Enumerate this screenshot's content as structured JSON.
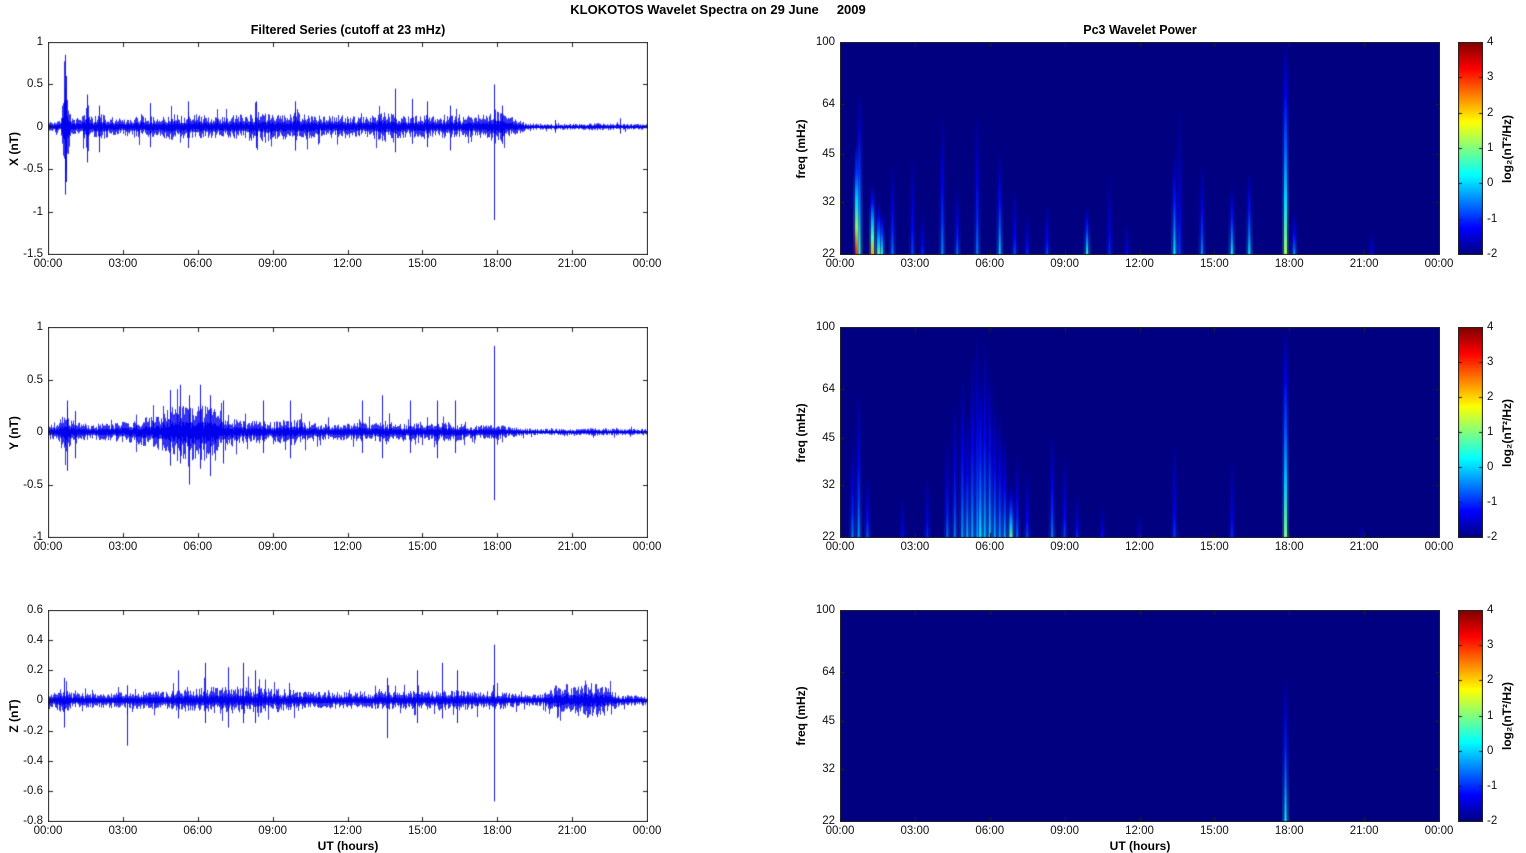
{
  "figure_title": "KLOKOTOS Wavelet Spectra on 29 June     2009",
  "x_axis": {
    "label": "UT (hours)",
    "tick_labels": [
      "00:00",
      "03:00",
      "06:00",
      "09:00",
      "12:00",
      "15:00",
      "18:00",
      "21:00",
      "00:00"
    ],
    "range_hours": [
      0,
      24
    ]
  },
  "colorbar": {
    "label": "log₂(nT²/Hz)",
    "ticks": [
      4,
      3,
      2,
      1,
      0,
      -1,
      -2
    ],
    "range": [
      -2,
      4
    ]
  },
  "colors": {
    "series_line": "#0000EE",
    "spectrogram_background": "#000090",
    "axis": "#222222",
    "text": "#000000"
  },
  "chart_data": [
    {
      "id": "ts-x",
      "type": "line",
      "title": "Filtered Series (cutoff at 23 mHz)",
      "ylabel": "X (nT)",
      "ylim": [
        -1.5,
        1
      ],
      "yticks": [
        1,
        0.5,
        0,
        -0.5,
        -1,
        -1.5
      ],
      "xlim": [
        0,
        24
      ],
      "seed": 11,
      "envelope": [
        [
          0,
          0.06
        ],
        [
          0.5,
          0.08
        ],
        [
          0.6,
          0.45
        ],
        [
          0.67,
          0.85
        ],
        [
          0.75,
          0.45
        ],
        [
          0.9,
          0.12
        ],
        [
          1.3,
          0.1
        ],
        [
          1.55,
          0.3
        ],
        [
          1.7,
          0.12
        ],
        [
          2,
          0.16
        ],
        [
          2.5,
          0.12
        ],
        [
          3,
          0.1
        ],
        [
          3.5,
          0.14
        ],
        [
          4,
          0.12
        ],
        [
          4.5,
          0.14
        ],
        [
          5,
          0.16
        ],
        [
          5.5,
          0.14
        ],
        [
          6,
          0.17
        ],
        [
          6.5,
          0.14
        ],
        [
          7,
          0.12
        ],
        [
          7.5,
          0.14
        ],
        [
          8,
          0.16
        ],
        [
          8.5,
          0.18
        ],
        [
          9,
          0.14
        ],
        [
          9.5,
          0.16
        ],
        [
          10,
          0.18
        ],
        [
          10.5,
          0.14
        ],
        [
          11,
          0.12
        ],
        [
          11.5,
          0.14
        ],
        [
          12,
          0.14
        ],
        [
          12.5,
          0.12
        ],
        [
          13,
          0.14
        ],
        [
          13.5,
          0.18
        ],
        [
          14,
          0.14
        ],
        [
          14.5,
          0.12
        ],
        [
          15,
          0.16
        ],
        [
          15.5,
          0.12
        ],
        [
          16,
          0.14
        ],
        [
          16.5,
          0.12
        ],
        [
          17,
          0.14
        ],
        [
          17.5,
          0.16
        ],
        [
          17.9,
          0.22
        ],
        [
          18.3,
          0.14
        ],
        [
          18.8,
          0.09
        ],
        [
          19.2,
          0.04
        ],
        [
          20,
          0.035
        ],
        [
          21,
          0.035
        ],
        [
          22,
          0.045
        ],
        [
          23,
          0.035
        ],
        [
          24,
          0.035
        ]
      ],
      "spikes": [
        [
          0.67,
          0.85,
          -0.8
        ],
        [
          0.72,
          0.6,
          -0.65
        ],
        [
          1.55,
          0.38,
          -0.42
        ],
        [
          2.05,
          0.25,
          -0.3
        ],
        [
          4.1,
          0.28,
          -0.24
        ],
        [
          5.6,
          0.3,
          -0.25
        ],
        [
          8.35,
          0.3,
          -0.25
        ],
        [
          9.9,
          0.3,
          -0.28
        ],
        [
          13.9,
          0.45,
          -0.3
        ],
        [
          14.6,
          0.33,
          -0.2
        ],
        [
          15.2,
          0.3,
          -0.24
        ],
        [
          16.1,
          0.25,
          -0.28
        ],
        [
          17.85,
          0.5,
          -1.1
        ],
        [
          18.2,
          0.25,
          -0.2
        ],
        [
          20.3,
          0.08,
          -0.07
        ],
        [
          22.9,
          0.1,
          -0.08
        ]
      ]
    },
    {
      "id": "ts-y",
      "type": "line",
      "ylabel": "Y (nT)",
      "ylim": [
        -1,
        1
      ],
      "yticks": [
        1,
        0.5,
        0,
        -0.5,
        -1
      ],
      "xlim": [
        0,
        24
      ],
      "seed": 22,
      "envelope": [
        [
          0,
          0.06
        ],
        [
          0.4,
          0.14
        ],
        [
          0.6,
          0.2
        ],
        [
          0.75,
          0.22
        ],
        [
          0.9,
          0.12
        ],
        [
          1.2,
          0.09
        ],
        [
          2,
          0.08
        ],
        [
          3,
          0.1
        ],
        [
          3.6,
          0.12
        ],
        [
          4.2,
          0.16
        ],
        [
          4.8,
          0.22
        ],
        [
          5.2,
          0.26
        ],
        [
          5.6,
          0.3
        ],
        [
          6,
          0.27
        ],
        [
          6.4,
          0.28
        ],
        [
          6.8,
          0.22
        ],
        [
          7.2,
          0.16
        ],
        [
          7.6,
          0.12
        ],
        [
          8,
          0.1
        ],
        [
          8.5,
          0.12
        ],
        [
          9,
          0.1
        ],
        [
          9.5,
          0.12
        ],
        [
          10,
          0.13
        ],
        [
          10.5,
          0.1
        ],
        [
          11,
          0.08
        ],
        [
          12,
          0.08
        ],
        [
          12.5,
          0.1
        ],
        [
          13,
          0.08
        ],
        [
          13.5,
          0.11
        ],
        [
          14,
          0.08
        ],
        [
          14.5,
          0.09
        ],
        [
          15,
          0.08
        ],
        [
          15.5,
          0.09
        ],
        [
          16,
          0.09
        ],
        [
          16.5,
          0.08
        ],
        [
          17,
          0.06
        ],
        [
          17.5,
          0.07
        ],
        [
          18,
          0.07
        ],
        [
          18.6,
          0.05
        ],
        [
          19,
          0.035
        ],
        [
          20,
          0.03
        ],
        [
          21,
          0.03
        ],
        [
          22,
          0.04
        ],
        [
          23,
          0.03
        ],
        [
          24,
          0.03
        ]
      ],
      "spikes": [
        [
          0.75,
          0.3,
          -0.37
        ],
        [
          1.1,
          0.2,
          -0.25
        ],
        [
          4.9,
          0.4,
          -0.32
        ],
        [
          5.3,
          0.45,
          -0.3
        ],
        [
          5.65,
          0.35,
          -0.5
        ],
        [
          6.1,
          0.45,
          -0.35
        ],
        [
          6.5,
          0.35,
          -0.42
        ],
        [
          7.0,
          0.3,
          -0.3
        ],
        [
          8.6,
          0.3,
          -0.2
        ],
        [
          9.7,
          0.3,
          -0.25
        ],
        [
          12.6,
          0.3,
          -0.2
        ],
        [
          13.4,
          0.35,
          -0.25
        ],
        [
          14.5,
          0.3,
          -0.2
        ],
        [
          15.6,
          0.3,
          -0.25
        ],
        [
          16.3,
          0.3,
          -0.2
        ],
        [
          17.85,
          0.82,
          -0.65
        ]
      ]
    },
    {
      "id": "ts-z",
      "type": "line",
      "ylabel": "Z (nT)",
      "xlabel": "UT (hours)",
      "ylim": [
        -0.8,
        0.6
      ],
      "yticks": [
        0.6,
        0.4,
        0.2,
        0,
        -0.2,
        -0.4,
        -0.6,
        -0.8
      ],
      "xlim": [
        0,
        24
      ],
      "seed": 33,
      "envelope": [
        [
          0,
          0.035
        ],
        [
          0.6,
          0.09
        ],
        [
          0.8,
          0.07
        ],
        [
          1,
          0.05
        ],
        [
          2,
          0.05
        ],
        [
          3,
          0.055
        ],
        [
          4,
          0.06
        ],
        [
          5,
          0.065
        ],
        [
          5.5,
          0.075
        ],
        [
          6,
          0.085
        ],
        [
          6.5,
          0.09
        ],
        [
          7,
          0.095
        ],
        [
          7.5,
          0.095
        ],
        [
          8,
          0.09
        ],
        [
          8.5,
          0.085
        ],
        [
          9,
          0.08
        ],
        [
          9.5,
          0.075
        ],
        [
          10,
          0.07
        ],
        [
          10.5,
          0.06
        ],
        [
          11,
          0.055
        ],
        [
          12,
          0.055
        ],
        [
          12.5,
          0.065
        ],
        [
          13,
          0.055
        ],
        [
          13.5,
          0.07
        ],
        [
          14,
          0.055
        ],
        [
          14.5,
          0.065
        ],
        [
          15,
          0.06
        ],
        [
          15.5,
          0.07
        ],
        [
          16,
          0.065
        ],
        [
          16.5,
          0.07
        ],
        [
          17,
          0.06
        ],
        [
          17.5,
          0.065
        ],
        [
          18,
          0.065
        ],
        [
          18.5,
          0.05
        ],
        [
          19,
          0.04
        ],
        [
          19.8,
          0.04
        ],
        [
          20.4,
          0.11
        ],
        [
          21,
          0.11
        ],
        [
          21.6,
          0.12
        ],
        [
          22.2,
          0.11
        ],
        [
          22.6,
          0.08
        ],
        [
          22.9,
          0.035
        ],
        [
          23.5,
          0.035
        ],
        [
          24,
          0.035
        ]
      ],
      "spikes": [
        [
          0.65,
          0.15,
          -0.18
        ],
        [
          3.15,
          0.1,
          -0.3
        ],
        [
          5.2,
          0.2,
          -0.12
        ],
        [
          6.3,
          0.25,
          -0.15
        ],
        [
          7.2,
          0.22,
          -0.18
        ],
        [
          7.8,
          0.25,
          -0.15
        ],
        [
          8.3,
          0.2,
          -0.15
        ],
        [
          13.6,
          0.15,
          -0.25
        ],
        [
          14.8,
          0.2,
          -0.15
        ],
        [
          15.8,
          0.25,
          -0.12
        ],
        [
          16.4,
          0.2,
          -0.15
        ],
        [
          17.85,
          0.37,
          -0.67
        ]
      ]
    },
    {
      "id": "spec-x",
      "type": "heatmap",
      "title": "Pc3 Wavelet Power",
      "ylabel": "freq (mHz)",
      "ylim": [
        22,
        100
      ],
      "yscale": "log",
      "yticks": [
        100,
        64,
        45,
        32,
        22
      ],
      "xlim": [
        0,
        24
      ],
      "clim": [
        -2,
        4
      ],
      "events": [
        [
          0.67,
          48,
          3.2
        ],
        [
          0.78,
          72,
          0.6
        ],
        [
          1.3,
          36,
          2.2
        ],
        [
          1.55,
          32,
          0.9
        ],
        [
          1.68,
          30,
          0.6
        ],
        [
          2.1,
          42,
          -0.5
        ],
        [
          2.9,
          46,
          -0.8
        ],
        [
          3.3,
          30,
          -1
        ],
        [
          4.1,
          60,
          -0.4
        ],
        [
          4.7,
          36,
          -0.6
        ],
        [
          5.5,
          62,
          -0.5
        ],
        [
          6.4,
          46,
          0
        ],
        [
          7,
          36,
          -0.8
        ],
        [
          7.5,
          30,
          -1
        ],
        [
          8.3,
          32,
          -0.8
        ],
        [
          9.9,
          31,
          0.5
        ],
        [
          10.8,
          40,
          -1
        ],
        [
          11.5,
          28,
          -1.2
        ],
        [
          13.4,
          46,
          0.3
        ],
        [
          13.6,
          66,
          -0.9
        ],
        [
          14.5,
          42,
          -0.4
        ],
        [
          15.7,
          36,
          0.3
        ],
        [
          16.4,
          40,
          0.2
        ],
        [
          17.85,
          100,
          1.2
        ],
        [
          18.2,
          30,
          -0.3
        ],
        [
          21.3,
          26,
          -1.2
        ]
      ]
    },
    {
      "id": "spec-y",
      "type": "heatmap",
      "ylabel": "freq (mHz)",
      "ylim": [
        22,
        100
      ],
      "yscale": "log",
      "yticks": [
        100,
        64,
        45,
        32,
        22
      ],
      "xlim": [
        0,
        24
      ],
      "clim": [
        -2,
        4
      ],
      "events": [
        [
          0.5,
          45,
          -0.5
        ],
        [
          0.75,
          64,
          -0.3
        ],
        [
          1.1,
          35,
          -0.7
        ],
        [
          2.5,
          30,
          -1.2
        ],
        [
          3.5,
          35,
          -1
        ],
        [
          4.3,
          45,
          -0.6
        ],
        [
          4.6,
          60,
          -0.5
        ],
        [
          4.9,
          72,
          -0.3
        ],
        [
          5.1,
          55,
          -0.2
        ],
        [
          5.3,
          82,
          -0.2
        ],
        [
          5.5,
          100,
          -0.4
        ],
        [
          5.62,
          72,
          0.2
        ],
        [
          5.8,
          92,
          -0.1
        ],
        [
          6,
          76,
          0
        ],
        [
          6.2,
          60,
          -0.2
        ],
        [
          6.4,
          55,
          -0.3
        ],
        [
          6.6,
          46,
          -0.2
        ],
        [
          6.85,
          32,
          0.8
        ],
        [
          7.1,
          40,
          -0.6
        ],
        [
          7.5,
          36,
          -0.8
        ],
        [
          8.5,
          48,
          -0.5
        ],
        [
          9,
          40,
          -0.8
        ],
        [
          9.5,
          30,
          -1
        ],
        [
          10.5,
          28,
          -1.2
        ],
        [
          12,
          26,
          -1.3
        ],
        [
          13.4,
          45,
          -0.9
        ],
        [
          15.7,
          40,
          -1
        ],
        [
          17.85,
          100,
          1
        ],
        [
          20.9,
          24,
          -1.3
        ]
      ]
    },
    {
      "id": "spec-z",
      "type": "heatmap",
      "ylabel": "freq (mHz)",
      "xlabel": "UT (hours)",
      "ylim": [
        22,
        100
      ],
      "yscale": "log",
      "yticks": [
        100,
        64,
        45,
        32,
        22
      ],
      "xlim": [
        0,
        24
      ],
      "clim": [
        -2,
        4
      ],
      "events": [
        [
          17.85,
          62,
          0.3
        ]
      ]
    }
  ]
}
